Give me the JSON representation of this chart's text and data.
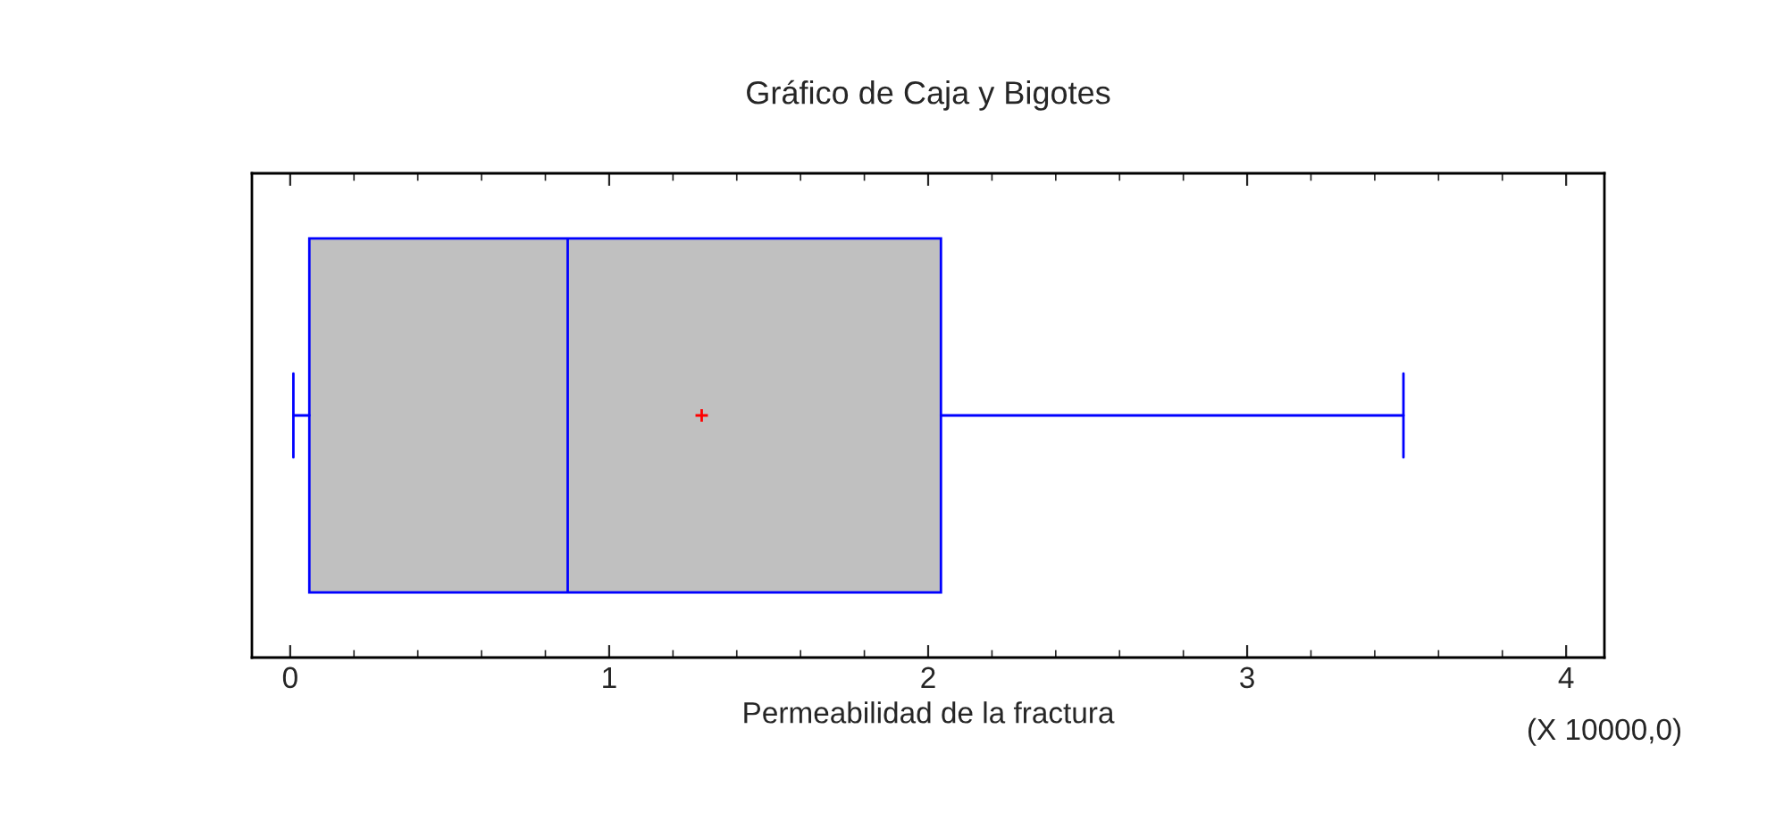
{
  "chart_data": {
    "type": "box",
    "title": "Gráfico de Caja y Bigotes",
    "xlabel": "Permeabilidad de la fractura",
    "orientation": "horizontal",
    "categories": [
      null
    ],
    "boxes": [
      {
        "low": 0.01,
        "q1": 0.06,
        "median": 0.87,
        "q3": 2.04,
        "high": 3.49,
        "mean": 1.29
      }
    ],
    "color": "#c0c0c0",
    "xlim": [
      -0.12,
      4.12
    ],
    "xticks": [
      0,
      1,
      2,
      3,
      4
    ],
    "grid": false,
    "annotations": [
      "(X 10000,0)"
    ]
  }
}
